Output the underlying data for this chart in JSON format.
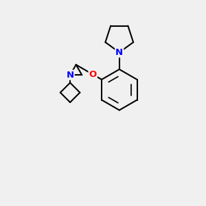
{
  "bg_color": "#f0f0f0",
  "bond_color": "#000000",
  "bond_width": 1.5,
  "N_color": "#0000ff",
  "O_color": "#ff0000",
  "font_size": 9.5,
  "fig_size": [
    3.0,
    3.0
  ],
  "dpi": 100,
  "xlim": [
    0,
    10
  ],
  "ylim": [
    0,
    10
  ]
}
